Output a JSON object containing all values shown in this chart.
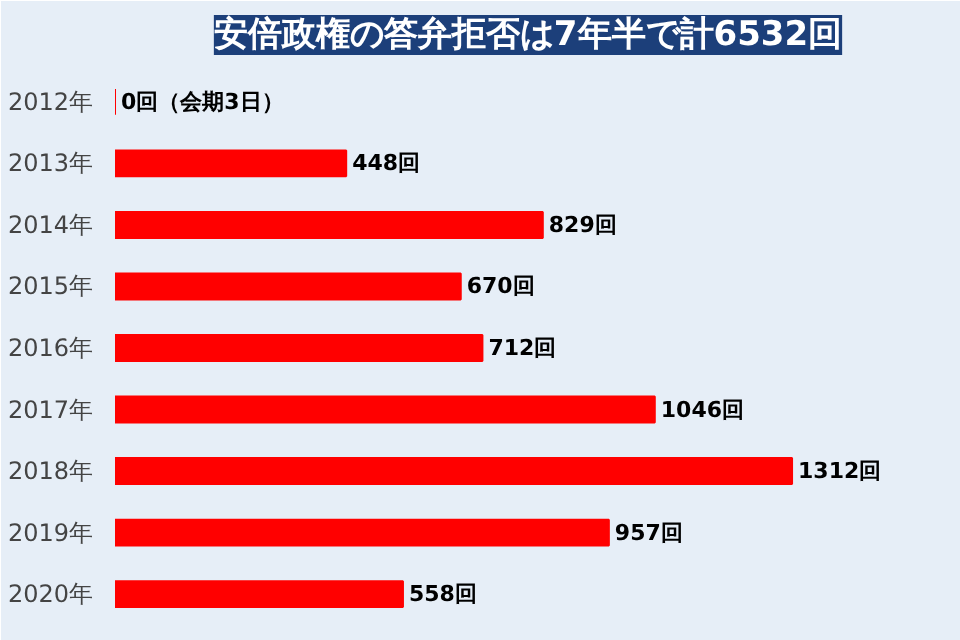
{
  "chart_data": {
    "type": "bar",
    "orientation": "horizontal",
    "title": "安倍政権の答弁拒否は7年半で計6532回",
    "categories": [
      "2012年",
      "2013年",
      "2014年",
      "2015年",
      "2016年",
      "2017年",
      "2018年",
      "2019年",
      "2020年"
    ],
    "values": [
      0,
      448,
      829,
      670,
      712,
      1046,
      1312,
      957,
      558
    ],
    "value_labels": [
      "0回（会期3日）",
      "448回",
      "829回",
      "670回",
      "712回",
      "1046回",
      "1312回",
      "957回",
      "558回"
    ],
    "color": "#ff0000",
    "grid": false
  }
}
